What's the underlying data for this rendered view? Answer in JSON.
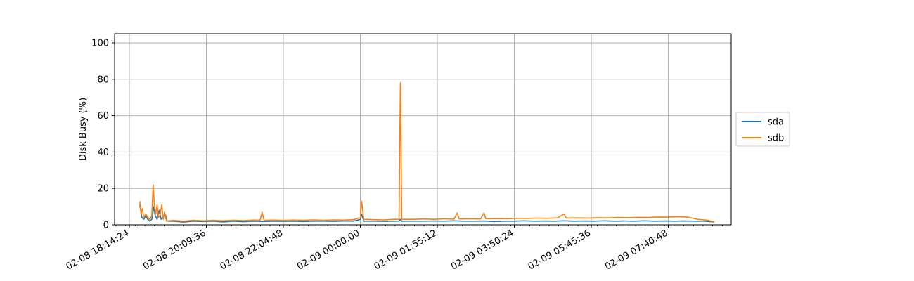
{
  "chart_data": {
    "type": "line",
    "title": "",
    "xlabel": "",
    "ylabel": "Disk Busy (%)",
    "ylim": [
      0,
      105
    ],
    "y_ticks": [
      0,
      20,
      40,
      60,
      80,
      100
    ],
    "x_ticks": [
      "02-08 18:14:24",
      "02-08 20:09:36",
      "02-08 22:04:48",
      "02-09 00:00:00",
      "02-09 01:55:12",
      "02-09 03:50:24",
      "02-09 05:45:36",
      "02-09 07:40:48"
    ],
    "grid": true,
    "legend_position": "right",
    "series": [
      {
        "name": "sda",
        "color": "#1f77b4",
        "points": [
          [
            "02-08 18:30",
            11
          ],
          [
            "02-08 18:33",
            4
          ],
          [
            "02-08 18:36",
            3
          ],
          [
            "02-08 18:39",
            5
          ],
          [
            "02-08 18:42",
            3
          ],
          [
            "02-08 18:45",
            2
          ],
          [
            "02-08 18:48",
            3
          ],
          [
            "02-08 18:51",
            10
          ],
          [
            "02-08 18:53",
            5
          ],
          [
            "02-08 18:56",
            3
          ],
          [
            "02-08 18:59",
            8
          ],
          [
            "02-08 19:02",
            3
          ],
          [
            "02-08 19:05",
            4
          ],
          [
            "02-08 19:08",
            6
          ],
          [
            "02-08 19:11",
            2
          ],
          [
            "02-08 19:20",
            2
          ],
          [
            "02-08 19:35",
            1.5
          ],
          [
            "02-08 19:50",
            2
          ],
          [
            "02-08 20:05",
            1.8
          ],
          [
            "02-08 20:20",
            2
          ],
          [
            "02-08 20:35",
            1.6
          ],
          [
            "02-08 20:50",
            2
          ],
          [
            "02-08 21:05",
            1.7
          ],
          [
            "02-08 21:20",
            2
          ],
          [
            "02-08 21:35",
            1.8
          ],
          [
            "02-08 21:50",
            2
          ],
          [
            "02-08 22:05",
            1.9
          ],
          [
            "02-08 22:20",
            2
          ],
          [
            "02-08 22:35",
            1.8
          ],
          [
            "02-08 22:50",
            2
          ],
          [
            "02-08 23:05",
            2
          ],
          [
            "02-08 23:20",
            1.9
          ],
          [
            "02-08 23:35",
            2.1
          ],
          [
            "02-08 23:50",
            2
          ],
          [
            "02-09 00:00",
            3
          ],
          [
            "02-09 00:02",
            6
          ],
          [
            "02-09 00:05",
            2
          ],
          [
            "02-09 00:20",
            2
          ],
          [
            "02-09 00:35",
            1.9
          ],
          [
            "02-09 00:50",
            2
          ],
          [
            "02-09 00:58",
            2
          ],
          [
            "02-09 01:00",
            3
          ],
          [
            "02-09 01:02",
            2
          ],
          [
            "02-09 01:20",
            2
          ],
          [
            "02-09 01:35",
            2
          ],
          [
            "02-09 01:50",
            2.1
          ],
          [
            "02-09 02:05",
            2
          ],
          [
            "02-09 02:20",
            2.2
          ],
          [
            "02-09 02:35",
            2
          ],
          [
            "02-09 02:50",
            2
          ],
          [
            "02-09 03:05",
            2.1
          ],
          [
            "02-09 03:20",
            1.8
          ],
          [
            "02-09 03:35",
            2
          ],
          [
            "02-09 03:50",
            2
          ],
          [
            "02-09 04:05",
            2.2
          ],
          [
            "02-09 04:20",
            2
          ],
          [
            "02-09 04:35",
            2.1
          ],
          [
            "02-09 04:50",
            2
          ],
          [
            "02-09 05:05",
            2.2
          ],
          [
            "02-09 05:20",
            2
          ],
          [
            "02-09 05:35",
            2.1
          ],
          [
            "02-09 05:50",
            2
          ],
          [
            "02-09 06:05",
            2.2
          ],
          [
            "02-09 06:20",
            2
          ],
          [
            "02-09 06:35",
            2.1
          ],
          [
            "02-09 06:50",
            2
          ],
          [
            "02-09 07:05",
            2.2
          ],
          [
            "02-09 07:20",
            2
          ],
          [
            "02-09 07:35",
            2.1
          ],
          [
            "02-09 07:50",
            2
          ],
          [
            "02-09 08:05",
            2.1
          ],
          [
            "02-09 08:20",
            2
          ],
          [
            "02-09 08:35",
            2
          ],
          [
            "02-09 08:50",
            1.5
          ]
        ]
      },
      {
        "name": "sdb",
        "color": "#ff7f0e",
        "points": [
          [
            "02-08 18:30",
            13
          ],
          [
            "02-08 18:32",
            6
          ],
          [
            "02-08 18:34",
            9
          ],
          [
            "02-08 18:36",
            4
          ],
          [
            "02-08 18:39",
            6
          ],
          [
            "02-08 18:42",
            4
          ],
          [
            "02-08 18:45",
            3
          ],
          [
            "02-08 18:48",
            5
          ],
          [
            "02-08 18:50",
            22
          ],
          [
            "02-08 18:52",
            10
          ],
          [
            "02-08 18:54",
            6
          ],
          [
            "02-08 18:56",
            11
          ],
          [
            "02-08 18:58",
            4
          ],
          [
            "02-08 19:00",
            5
          ],
          [
            "02-08 19:03",
            11
          ],
          [
            "02-08 19:05",
            3
          ],
          [
            "02-08 19:07",
            7
          ],
          [
            "02-08 19:10",
            2
          ],
          [
            "02-08 19:20",
            2.5
          ],
          [
            "02-08 19:35",
            2
          ],
          [
            "02-08 19:50",
            2.5
          ],
          [
            "02-08 20:05",
            2.2
          ],
          [
            "02-08 20:20",
            2.5
          ],
          [
            "02-08 20:35",
            2.2
          ],
          [
            "02-08 20:50",
            2.5
          ],
          [
            "02-08 21:05",
            2.3
          ],
          [
            "02-08 21:20",
            2.6
          ],
          [
            "02-08 21:30",
            2.5
          ],
          [
            "02-08 21:33",
            7
          ],
          [
            "02-08 21:36",
            2.5
          ],
          [
            "02-08 21:50",
            2.6
          ],
          [
            "02-08 22:05",
            2.4
          ],
          [
            "02-08 22:20",
            2.6
          ],
          [
            "02-08 22:35",
            2.5
          ],
          [
            "02-08 22:50",
            2.7
          ],
          [
            "02-08 23:05",
            2.5
          ],
          [
            "02-08 23:20",
            2.7
          ],
          [
            "02-08 23:35",
            2.6
          ],
          [
            "02-08 23:50",
            2.8
          ],
          [
            "02-09 00:00",
            4
          ],
          [
            "02-09 00:02",
            13
          ],
          [
            "02-09 00:05",
            3
          ],
          [
            "02-09 00:20",
            2.8
          ],
          [
            "02-09 00:35",
            2.7
          ],
          [
            "02-09 00:50",
            3
          ],
          [
            "02-09 00:58",
            3
          ],
          [
            "02-09 00:59",
            45
          ],
          [
            "02-09 01:00",
            78
          ],
          [
            "02-09 01:01",
            40
          ],
          [
            "02-09 01:02",
            3
          ],
          [
            "02-09 01:20",
            3
          ],
          [
            "02-09 01:35",
            3.2
          ],
          [
            "02-09 01:50",
            3
          ],
          [
            "02-09 02:05",
            3.3
          ],
          [
            "02-09 02:20",
            3.1
          ],
          [
            "02-09 02:25",
            6.5
          ],
          [
            "02-09 02:28",
            3.2
          ],
          [
            "02-09 02:45",
            3.3
          ],
          [
            "02-09 03:00",
            3.2
          ],
          [
            "02-09 03:05",
            6.5
          ],
          [
            "02-09 03:08",
            3.3
          ],
          [
            "02-09 03:25",
            3.4
          ],
          [
            "02-09 03:40",
            3.3
          ],
          [
            "02-09 03:55",
            3.6
          ],
          [
            "02-09 04:10",
            3.5
          ],
          [
            "02-09 04:25",
            3.7
          ],
          [
            "02-09 04:40",
            3.6
          ],
          [
            "02-09 04:55",
            3.8
          ],
          [
            "02-09 05:05",
            6
          ],
          [
            "02-09 05:08",
            3.7
          ],
          [
            "02-09 05:25",
            3.8
          ],
          [
            "02-09 05:40",
            3.7
          ],
          [
            "02-09 05:55",
            3.9
          ],
          [
            "02-09 06:10",
            3.8
          ],
          [
            "02-09 06:25",
            4
          ],
          [
            "02-09 06:40",
            3.9
          ],
          [
            "02-09 06:55",
            4.1
          ],
          [
            "02-09 07:10",
            4
          ],
          [
            "02-09 07:25",
            4.3
          ],
          [
            "02-09 07:40",
            4.2
          ],
          [
            "02-09 07:55",
            4.4
          ],
          [
            "02-09 08:10",
            4.2
          ],
          [
            "02-09 08:25",
            3
          ],
          [
            "02-09 08:40",
            2.5
          ],
          [
            "02-09 08:50",
            1.5
          ]
        ]
      }
    ]
  }
}
